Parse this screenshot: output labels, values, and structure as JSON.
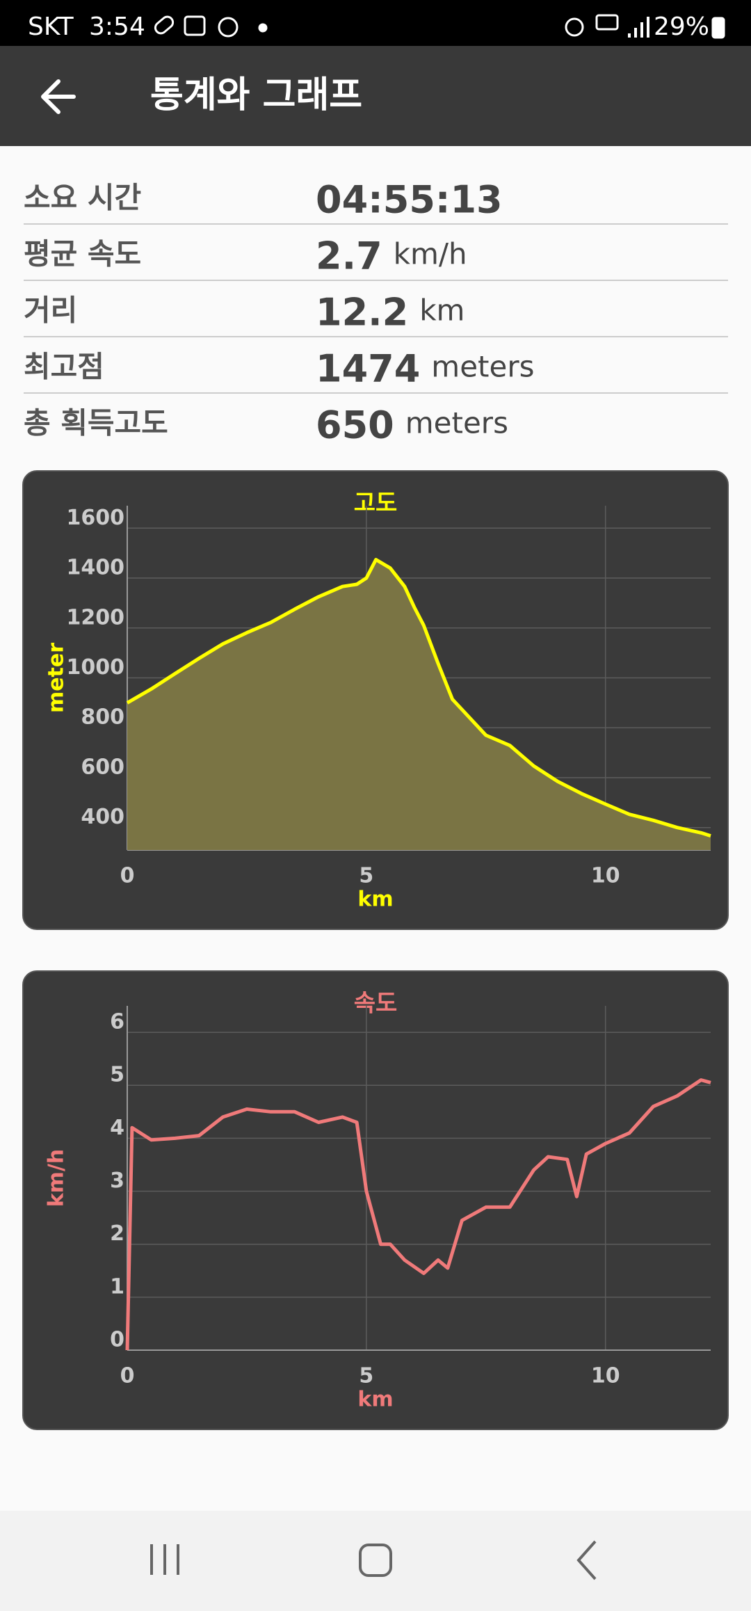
{
  "status_bar": {
    "carrier": "SKT",
    "time": "3:54",
    "battery": "29%"
  },
  "header": {
    "title": "통계와 그래프"
  },
  "stats": [
    {
      "label": "소요 시간",
      "value": "04:55:13"
    },
    {
      "label": "평균 속도",
      "value": 2.7,
      "unit": "km/h"
    },
    {
      "label": "거리",
      "value": 12.2,
      "unit": "km"
    },
    {
      "label": "최고점",
      "value": 1474,
      "unit": "meters"
    },
    {
      "label": "총 획득고도",
      "value": 650,
      "unit": "meters"
    }
  ],
  "chart_data": [
    {
      "type": "area",
      "title": "고도",
      "xlabel": "km",
      "ylabel": "meter",
      "color": "#ffff00",
      "fill_color": "#7a7444",
      "x": [
        0,
        0.5,
        1,
        1.5,
        2,
        2.5,
        3,
        3.5,
        4,
        4.5,
        4.8,
        5.0,
        5.2,
        5.5,
        5.8,
        6.0,
        6.2,
        6.5,
        6.8,
        7.0,
        7.5,
        8.0,
        8.5,
        9.0,
        9.5,
        10.0,
        10.5,
        11.0,
        11.5,
        12.0,
        12.2
      ],
      "values": [
        900,
        955,
        1017,
        1078,
        1136,
        1181,
        1222,
        1275,
        1325,
        1366,
        1375,
        1400,
        1474,
        1440,
        1366,
        1284,
        1210,
        1058,
        914,
        873,
        770,
        729,
        647,
        585,
        536,
        494,
        453,
        429,
        400,
        379,
        367
      ],
      "xlim": [
        0,
        12.2
      ],
      "xticks": [
        0,
        5,
        10
      ],
      "ylim": [
        310,
        1690
      ],
      "yticks": [
        400,
        600,
        800,
        1000,
        1200,
        1400,
        1600
      ],
      "grid": true
    },
    {
      "type": "line",
      "title": "속도",
      "xlabel": "km",
      "ylabel": "km/h",
      "color": "#f07a7a",
      "x": [
        0,
        0.1,
        0.5,
        1,
        1.5,
        2,
        2.5,
        3,
        3.5,
        4,
        4.5,
        4.8,
        5.0,
        5.3,
        5.5,
        5.8,
        6.2,
        6.5,
        6.7,
        7.0,
        7.5,
        8.0,
        8.5,
        8.8,
        9.2,
        9.4,
        9.6,
        10.0,
        10.5,
        11.0,
        11.5,
        12.0,
        12.2
      ],
      "values": [
        0,
        4.2,
        3.97,
        4.0,
        4.05,
        4.4,
        4.55,
        4.5,
        4.5,
        4.3,
        4.4,
        4.3,
        3.0,
        2.0,
        2.0,
        1.7,
        1.45,
        1.7,
        1.55,
        2.45,
        2.7,
        2.7,
        3.4,
        3.65,
        3.6,
        2.9,
        3.7,
        3.9,
        4.1,
        4.6,
        4.8,
        5.1,
        5.05
      ],
      "xlim": [
        0,
        12.2
      ],
      "xticks": [
        0,
        5,
        10
      ],
      "ylim": [
        0,
        6.5
      ],
      "yticks": [
        0,
        1,
        2,
        3,
        4,
        5,
        6
      ],
      "grid": true
    }
  ]
}
